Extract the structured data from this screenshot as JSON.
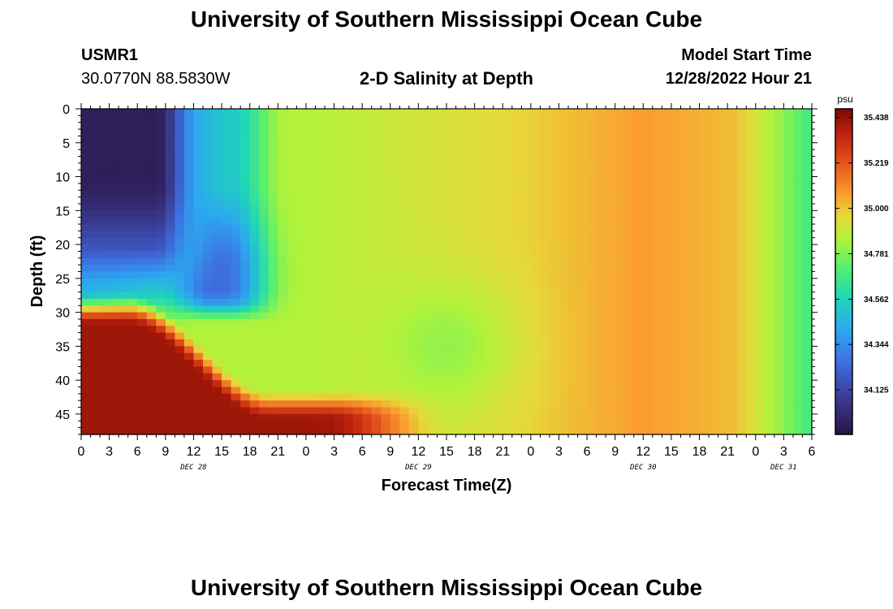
{
  "page": {
    "title": "University of Southern Mississippi Ocean Cube",
    "station_id": "USMR1",
    "station_coords": "30.0770N  88.5830W",
    "subtitle": "2-D Salinity at Depth",
    "model_start_label": "Model Start Time",
    "model_start_value": "12/28/2022 Hour 21",
    "footer_title": "University of Southern Mississippi Ocean Cube"
  },
  "chart_data": {
    "type": "heatmap",
    "title": "2-D Salinity at Depth",
    "xlabel": "Forecast Time(Z)",
    "ylabel": "Depth (ft)",
    "x_tick_labels": [
      "0",
      "3",
      "6",
      "9",
      "12",
      "15",
      "18",
      "21",
      "0",
      "3",
      "6",
      "9",
      "12",
      "15",
      "18",
      "21",
      "0",
      "3",
      "6",
      "9",
      "12",
      "15",
      "18",
      "21",
      "0",
      "3",
      "6"
    ],
    "x_range_hours": [
      0,
      78
    ],
    "date_labels": [
      {
        "label": "DEC 28",
        "center_hour": 12
      },
      {
        "label": "DEC 29",
        "center_hour": 36
      },
      {
        "label": "DEC 30",
        "center_hour": 60
      },
      {
        "label": "DEC 31",
        "center_hour": 75
      }
    ],
    "y_ticks": [
      0,
      5,
      10,
      15,
      20,
      25,
      30,
      35,
      40,
      45
    ],
    "y_range": [
      0,
      48
    ],
    "y_inverted": true,
    "colorbar": {
      "unit": "psu",
      "min": 33.91,
      "max": 35.48,
      "ticks": [
        "35.438",
        "35.219",
        "35.000",
        "34.781",
        "34.562",
        "34.344",
        "34.125"
      ],
      "tick_values": [
        35.438,
        35.219,
        35.0,
        34.781,
        34.562,
        34.344,
        34.125
      ]
    },
    "description": "Salinity field over depth (ft) and forecast time (hours since Dec 28 00Z)"
  }
}
